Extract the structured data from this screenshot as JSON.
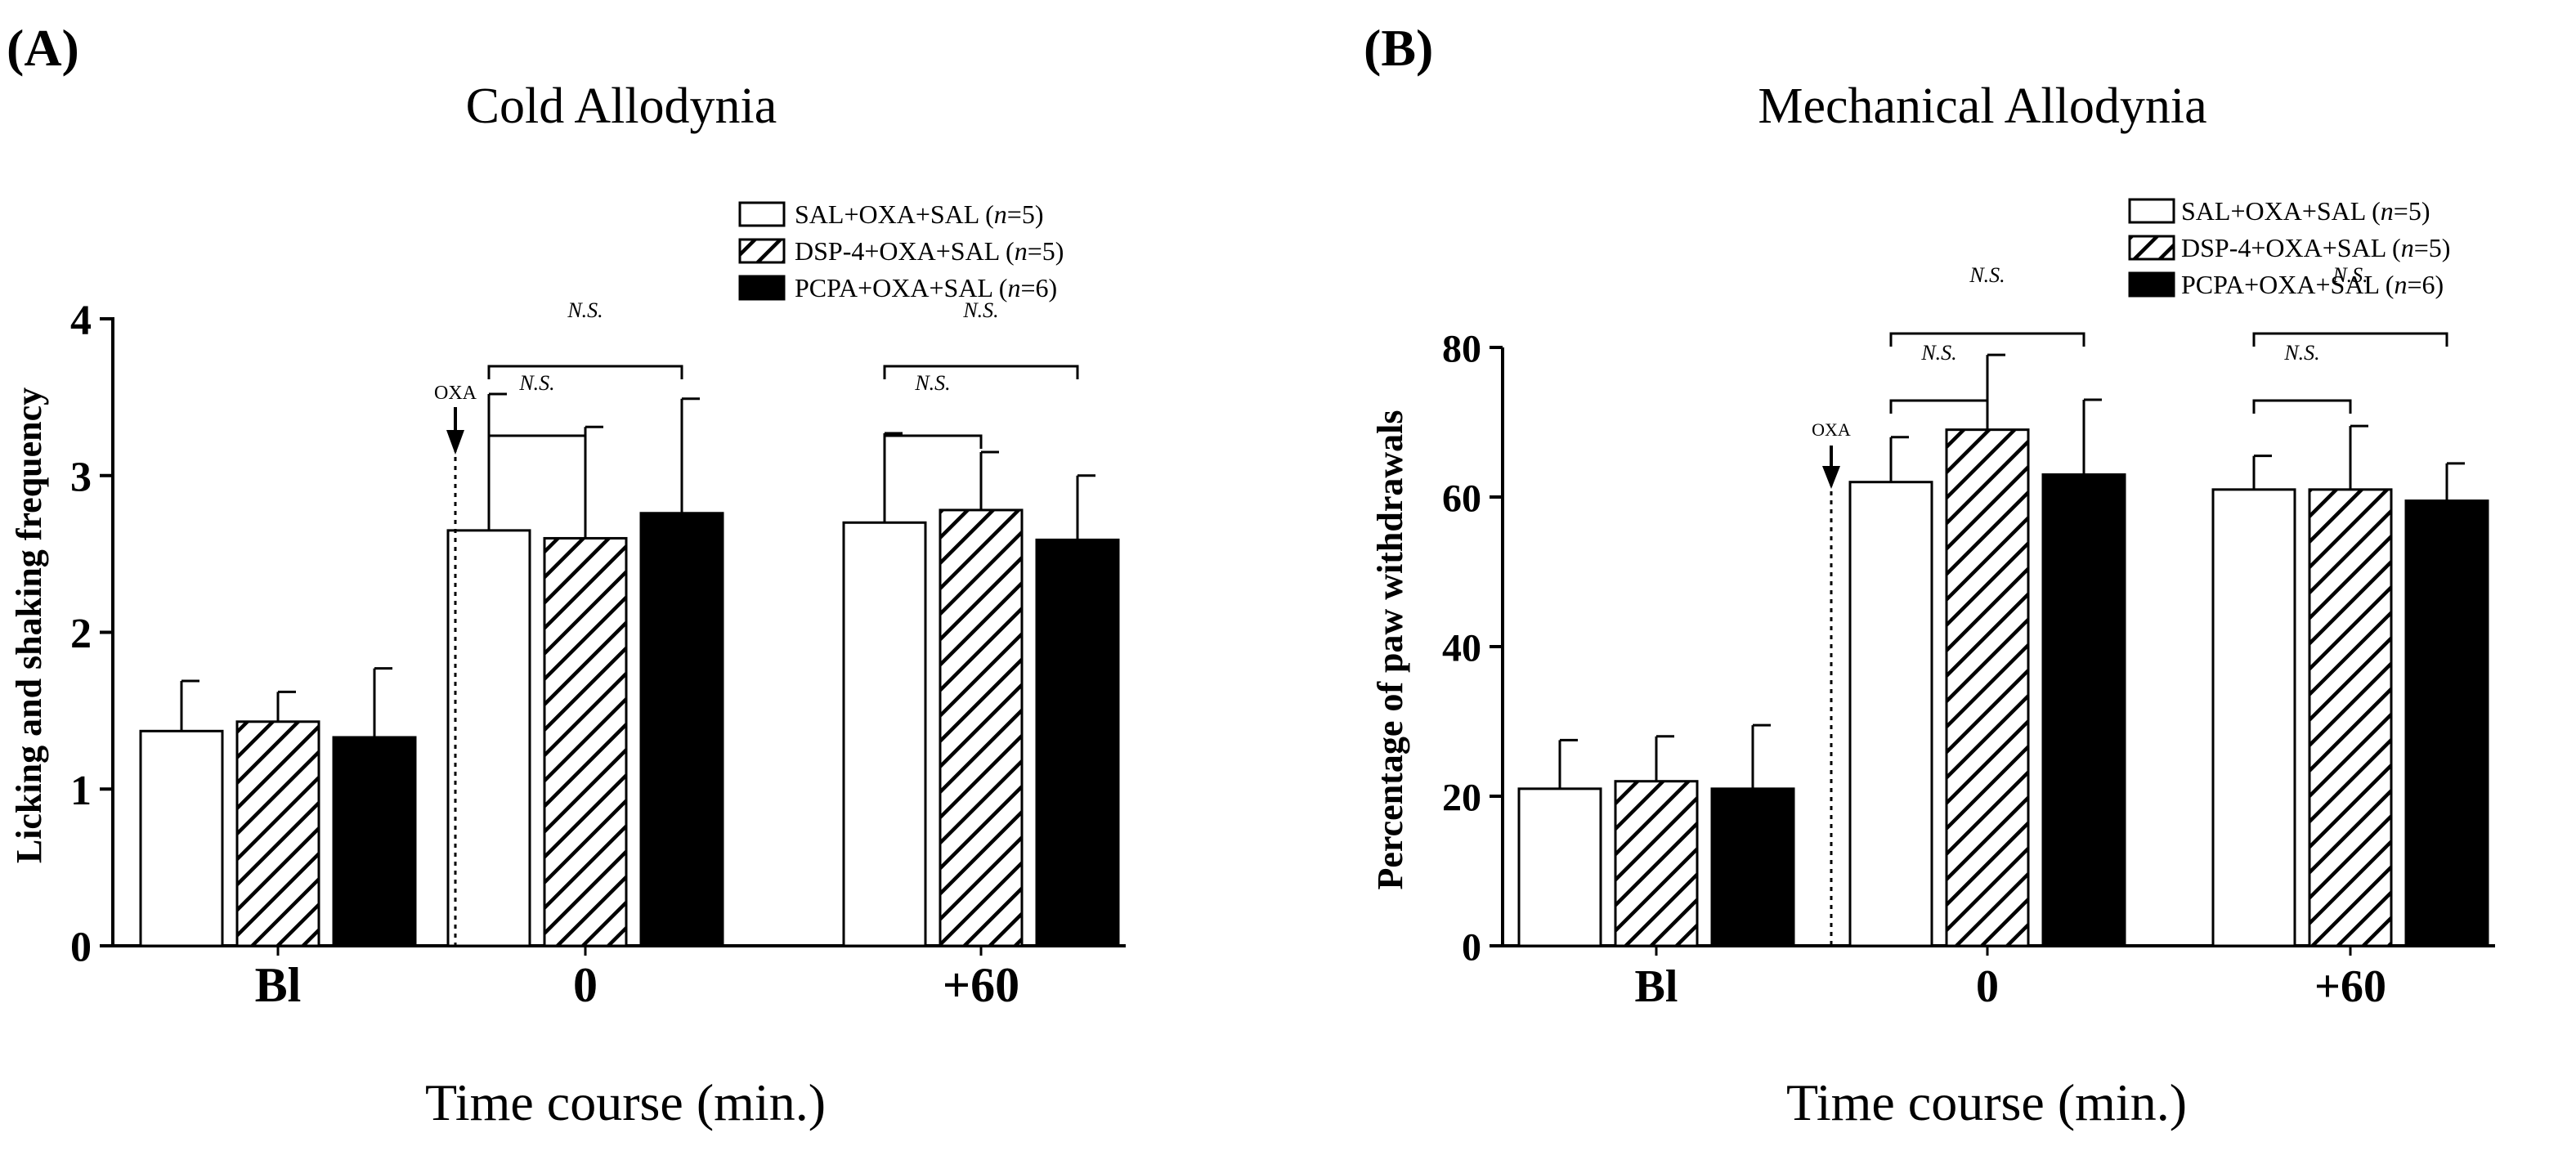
{
  "figure": {
    "panel_a_label": "(A)",
    "panel_b_label": "(B)"
  },
  "colors": {
    "bar_edge": "#000000",
    "sal_fill": "#ffffff",
    "pcpa_fill": "#000000",
    "hatch": "#000000"
  },
  "chart_data": [
    {
      "type": "bar",
      "panel": "A",
      "title": "Cold Allodynia",
      "xlabel": "Time course (min.)",
      "ylabel": "Licking and shaking frequency",
      "ylim": [
        0,
        4
      ],
      "yticks": [
        0,
        1,
        2,
        3,
        4
      ],
      "categories": [
        "Bl",
        "0",
        "+60"
      ],
      "series": [
        {
          "name": "SAL+OXA+SAL",
          "n_label": "(n=5)",
          "pattern": "open",
          "values": [
            1.37,
            2.65,
            2.7
          ],
          "errors": [
            0.32,
            0.87,
            0.57
          ]
        },
        {
          "name": "DSP-4+OXA+SAL",
          "n_label": "(n=5)",
          "pattern": "hatched",
          "values": [
            1.43,
            2.6,
            2.78
          ],
          "errors": [
            0.19,
            0.71,
            0.37
          ]
        },
        {
          "name": "PCPA+OXA+SAL",
          "n_label": "(n=6)",
          "pattern": "filled",
          "values": [
            1.33,
            2.76,
            2.59
          ],
          "errors": [
            0.44,
            0.73,
            0.41
          ]
        }
      ],
      "annotations": {
        "arrow_label": "OXA",
        "ns_label": "N.S.",
        "brackets": [
          {
            "category": "0",
            "from_series": 0,
            "to_series": 1
          },
          {
            "category": "0",
            "from_series": 0,
            "to_series": 2
          },
          {
            "category": "+60",
            "from_series": 0,
            "to_series": 1
          },
          {
            "category": "+60",
            "from_series": 0,
            "to_series": 2
          }
        ]
      }
    },
    {
      "type": "bar",
      "panel": "B",
      "title": "Mechanical Allodynia",
      "xlabel": "Time course (min.)",
      "ylabel": "Percentage of paw withdrawals",
      "ylim": [
        0,
        80
      ],
      "yticks": [
        0,
        20,
        40,
        60,
        80
      ],
      "categories": [
        "Bl",
        "0",
        "+60"
      ],
      "series": [
        {
          "name": "SAL+OXA+SAL",
          "n_label": "(n=5)",
          "pattern": "open",
          "values": [
            21,
            62,
            61
          ],
          "errors": [
            6.5,
            6,
            4.5
          ]
        },
        {
          "name": "DSP-4+OXA+SAL",
          "n_label": "(n=5)",
          "pattern": "hatched",
          "values": [
            22,
            69,
            61
          ],
          "errors": [
            6,
            10,
            8.5
          ]
        },
        {
          "name": "PCPA+OXA+SAL",
          "n_label": "(n=6)",
          "pattern": "filled",
          "values": [
            21,
            63,
            59.5
          ],
          "errors": [
            8.5,
            10,
            5
          ]
        }
      ],
      "annotations": {
        "arrow_label": "OXA",
        "ns_label": "N.S.",
        "brackets": [
          {
            "category": "0",
            "from_series": 0,
            "to_series": 1
          },
          {
            "category": "0",
            "from_series": 0,
            "to_series": 2
          },
          {
            "category": "+60",
            "from_series": 0,
            "to_series": 1
          },
          {
            "category": "+60",
            "from_series": 0,
            "to_series": 2
          }
        ]
      }
    }
  ]
}
